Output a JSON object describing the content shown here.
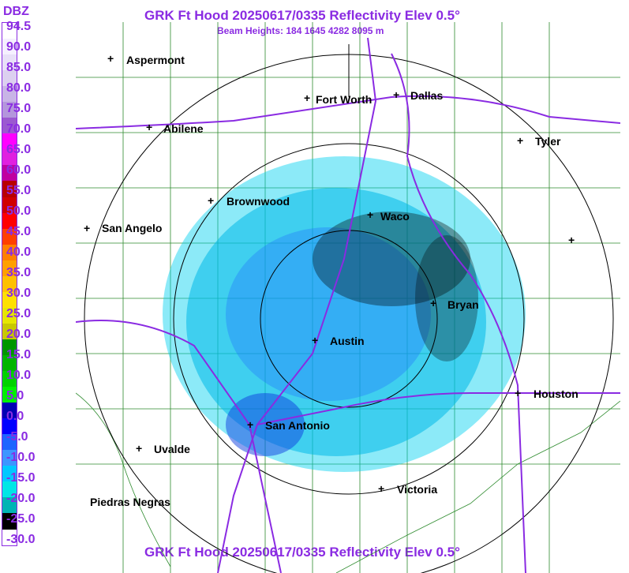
{
  "header": {
    "title": "GRK Ft Hood 20250617/0335 Reflectivity Elev 0.5°",
    "beam_heights": "Beam Heights: 184 1645 4282 8095 m",
    "footer_title": "GRK Ft Hood 20250617/0335 Reflectivity Elev 0.5°"
  },
  "legend": {
    "unit": "DBZ",
    "labels": [
      "94.5",
      "90.0",
      "85.0",
      "80.0",
      "75.0",
      "70.0",
      "65.0",
      "60.0",
      "55.0",
      "50.0",
      "45.0",
      "40.0",
      "35.0",
      "30.0",
      "25.0",
      "20.0",
      "15.0",
      "10.0",
      "5.0",
      "0.0",
      "-5.0",
      "-10.0",
      "-15.0",
      "-20.0",
      "-25.0",
      "-30.0"
    ],
    "colors": [
      "#ffffff",
      "#f5f0ff",
      "#e8e0f8",
      "#dcd0f0",
      "#c8b4e6",
      "#b496dc",
      "#9b59d0",
      "#ff00ff",
      "#e020e0",
      "#c000a0",
      "#b80000",
      "#d00000",
      "#ff0000",
      "#ff4000",
      "#ff8000",
      "#ffa000",
      "#ffc000",
      "#ffe000",
      "#e6e600",
      "#c8c800",
      "#009600",
      "#00b400",
      "#00d200",
      "#00f000",
      "#0000b4",
      "#0000ff",
      "#1e64ff",
      "#3c96ff",
      "#00c8ff",
      "#00e6e6",
      "#00b4b4",
      "#000000",
      "#ffffff"
    ]
  },
  "cities": [
    {
      "name": "Aspermont",
      "id": "aspermont"
    },
    {
      "name": "Fort Worth",
      "id": "fort-worth"
    },
    {
      "name": "Dallas",
      "id": "dallas"
    },
    {
      "name": "Abilene",
      "id": "abilene"
    },
    {
      "name": "Tyler",
      "id": "tyler"
    },
    {
      "name": "Brownwood",
      "id": "brownwood"
    },
    {
      "name": "Waco",
      "id": "waco"
    },
    {
      "name": "San Angelo",
      "id": "san-angelo"
    },
    {
      "name": "Bryan",
      "id": "bryan"
    },
    {
      "name": "Austin",
      "id": "austin"
    },
    {
      "name": "Houston",
      "id": "houston"
    },
    {
      "name": "San Antonio",
      "id": "san-antonio"
    },
    {
      "name": "Uvalde",
      "id": "uvalde"
    },
    {
      "name": "Victoria",
      "id": "victoria"
    },
    {
      "name": "Piedras Negras",
      "id": "piedras-negras"
    }
  ]
}
